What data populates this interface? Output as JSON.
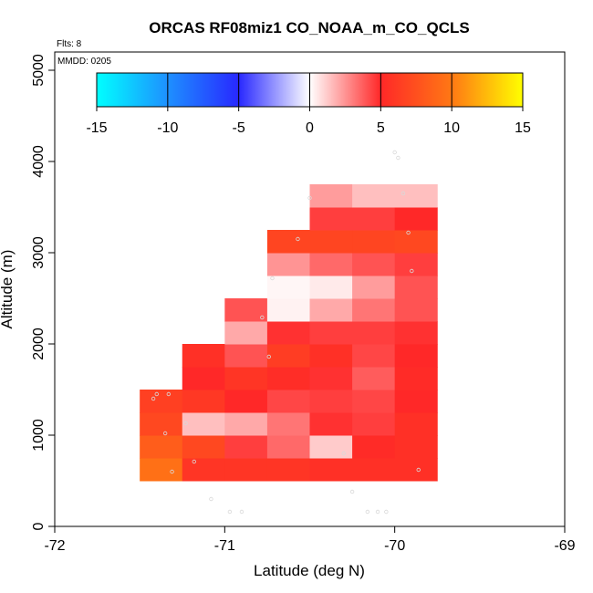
{
  "chart_data": {
    "type": "heatmap",
    "title": "ORCAS RF08miz1 CO_NOAA_m_CO_QCLS",
    "xlabel": "Latitude (deg N)",
    "ylabel": "Altitude (m)",
    "xlim": [
      -72,
      -69
    ],
    "ylim": [
      0,
      5200
    ],
    "x_ticks": [
      -72,
      -71,
      -70,
      -69
    ],
    "x_tick_labels": [
      "-72",
      "-71",
      "-70",
      "-69"
    ],
    "y_ticks": [
      0,
      1000,
      2000,
      3000,
      4000,
      5000
    ],
    "y_tick_labels": [
      "0",
      "1000",
      "2000",
      "3000",
      "4000",
      "5000"
    ],
    "annotations": {
      "flights": "Flts: 8",
      "date": "MMDD: 0205"
    },
    "colorbar": {
      "min": -15,
      "max": 15,
      "ticks": [
        -15,
        -10,
        -5,
        0,
        5,
        10,
        15
      ],
      "tick_labels": [
        "-15",
        "-10",
        "-5",
        "0",
        "5",
        "10",
        "15"
      ]
    },
    "cell_width_deg": 0.25,
    "cell_height_m": 250,
    "cells": [
      [
        -71.375,
        500,
        9.5
      ],
      [
        -71.125,
        500,
        5.8
      ],
      [
        -70.875,
        500,
        5.8
      ],
      [
        -70.625,
        500,
        5.8
      ],
      [
        -70.375,
        500,
        5.5
      ],
      [
        -70.125,
        500,
        5.5
      ],
      [
        -69.875,
        500,
        5.5
      ],
      [
        -71.375,
        750,
        8.3
      ],
      [
        -71.125,
        750,
        7.0
      ],
      [
        -70.875,
        750,
        4.5
      ],
      [
        -70.625,
        750,
        3.5
      ],
      [
        -70.375,
        750,
        1.2
      ],
      [
        -70.125,
        750,
        5.2
      ],
      [
        -69.875,
        750,
        5.5
      ],
      [
        -71.375,
        1000,
        7.0
      ],
      [
        -71.125,
        1000,
        1.5
      ],
      [
        -70.875,
        1000,
        2.0
      ],
      [
        -70.625,
        1000,
        3.2
      ],
      [
        -70.375,
        1000,
        4.8
      ],
      [
        -70.125,
        1000,
        4.5
      ],
      [
        -69.875,
        1000,
        5.5
      ],
      [
        -71.375,
        1250,
        6.5
      ],
      [
        -71.125,
        1250,
        6.0
      ],
      [
        -70.875,
        1250,
        5.0
      ],
      [
        -70.625,
        1250,
        4.3
      ],
      [
        -70.375,
        1250,
        4.5
      ],
      [
        -70.125,
        1250,
        4.3
      ],
      [
        -69.875,
        1250,
        5.0
      ],
      [
        -71.125,
        1500,
        5.0
      ],
      [
        -70.875,
        1500,
        5.8
      ],
      [
        -70.625,
        1500,
        5.3
      ],
      [
        -70.375,
        1500,
        4.8
      ],
      [
        -70.125,
        1500,
        3.8
      ],
      [
        -69.875,
        1500,
        5.2
      ],
      [
        -71.125,
        1750,
        5.5
      ],
      [
        -70.875,
        1750,
        4.0
      ],
      [
        -70.625,
        1750,
        6.3
      ],
      [
        -70.375,
        1750,
        5.5
      ],
      [
        -70.125,
        1750,
        4.3
      ],
      [
        -69.875,
        1750,
        5.0
      ],
      [
        -70.875,
        2000,
        2.0
      ],
      [
        -70.625,
        2000,
        4.8
      ],
      [
        -70.375,
        2000,
        4.5
      ],
      [
        -70.125,
        2000,
        4.5
      ],
      [
        -69.875,
        2000,
        4.8
      ],
      [
        -70.875,
        2250,
        4.0
      ],
      [
        -70.625,
        2250,
        0.3
      ],
      [
        -70.375,
        2250,
        2.0
      ],
      [
        -70.125,
        2250,
        3.2
      ],
      [
        -69.875,
        2250,
        4.0
      ],
      [
        -70.625,
        2500,
        0.2
      ],
      [
        -70.375,
        2500,
        0.5
      ],
      [
        -70.125,
        2500,
        2.3
      ],
      [
        -69.875,
        2500,
        4.0
      ],
      [
        -70.625,
        2750,
        2.5
      ],
      [
        -70.375,
        2750,
        3.5
      ],
      [
        -70.125,
        2750,
        4.0
      ],
      [
        -69.875,
        2750,
        4.5
      ],
      [
        -70.625,
        3000,
        6.8
      ],
      [
        -70.375,
        3000,
        6.8
      ],
      [
        -70.125,
        3000,
        6.8
      ],
      [
        -69.875,
        3000,
        7.0
      ],
      [
        -70.375,
        3250,
        4.5
      ],
      [
        -70.125,
        3250,
        4.5
      ],
      [
        -69.875,
        3250,
        5.0
      ],
      [
        -70.375,
        3500,
        2.3
      ],
      [
        -70.125,
        3500,
        1.5
      ],
      [
        -69.875,
        3500,
        1.5
      ]
    ],
    "points": [
      [
        -71.4,
        1450
      ],
      [
        -71.42,
        1400
      ],
      [
        -71.33,
        1450
      ],
      [
        -71.35,
        1020
      ],
      [
        -71.31,
        600
      ],
      [
        -71.23,
        1130
      ],
      [
        -71.18,
        710
      ],
      [
        -71.08,
        300
      ],
      [
        -70.97,
        160
      ],
      [
        -70.9,
        160
      ],
      [
        -70.78,
        2290
      ],
      [
        -70.72,
        2720
      ],
      [
        -70.74,
        1860
      ],
      [
        -70.57,
        3150
      ],
      [
        -70.5,
        3600
      ],
      [
        -70.3,
        800
      ],
      [
        -70.25,
        380
      ],
      [
        -70.16,
        160
      ],
      [
        -70.1,
        160
      ],
      [
        -70.05,
        160
      ],
      [
        -70,
        4100
      ],
      [
        -69.98,
        4040
      ],
      [
        -69.95,
        3650
      ],
      [
        -69.92,
        3220
      ],
      [
        -69.9,
        2800
      ],
      [
        -69.86,
        620
      ]
    ]
  }
}
